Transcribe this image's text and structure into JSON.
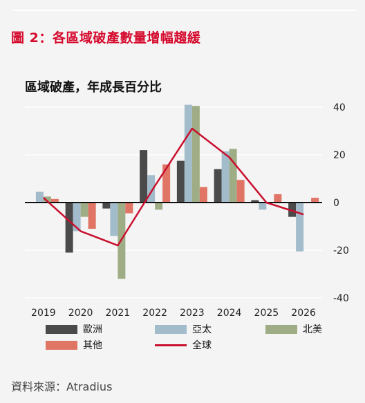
{
  "figure": {
    "title": "圖 2：各區域破產數量增幅趨緩",
    "source": "資料來源：Atradius"
  },
  "colors": {
    "title_red": "#d50a2d",
    "europe": "#4a4a4a",
    "asia_pacific": "#a3bccb",
    "north_america": "#9fad86",
    "others": "#e07565",
    "global_line": "#c8102e"
  },
  "chart_data": {
    "type": "bar",
    "title": "區域破產，年成長百分比",
    "xlabel": "",
    "ylabel": "",
    "ylim": [
      -40,
      40
    ],
    "yticks": [
      40,
      20,
      0,
      -20,
      -40
    ],
    "categories": [
      "2019",
      "2020",
      "2021",
      "2022",
      "2023",
      "2024",
      "2025",
      "2026"
    ],
    "series": [
      {
        "name": "歐洲",
        "type": "bar",
        "color": "#4a4a4a",
        "values": [
          0,
          -21,
          -2.5,
          22,
          17.5,
          14,
          1,
          -6
        ]
      },
      {
        "name": "亞太",
        "type": "bar",
        "color": "#a3bccb",
        "values": [
          4.5,
          -12,
          -14,
          11.5,
          41,
          21.5,
          -3,
          -20.5
        ]
      },
      {
        "name": "北美",
        "type": "bar",
        "color": "#9fad86",
        "values": [
          2.5,
          -6,
          -32,
          -3,
          40.5,
          22.5,
          0,
          0
        ]
      },
      {
        "name": "其他",
        "type": "bar",
        "color": "#e07565",
        "values": [
          1.5,
          -11,
          -4.5,
          16,
          6.5,
          9.5,
          3.5,
          2
        ]
      },
      {
        "name": "全球",
        "type": "line",
        "color": "#c8102e",
        "values": [
          2,
          -12,
          -18,
          7,
          31,
          19,
          0,
          -5
        ]
      }
    ],
    "grid": true,
    "legend_position": "bottom"
  }
}
